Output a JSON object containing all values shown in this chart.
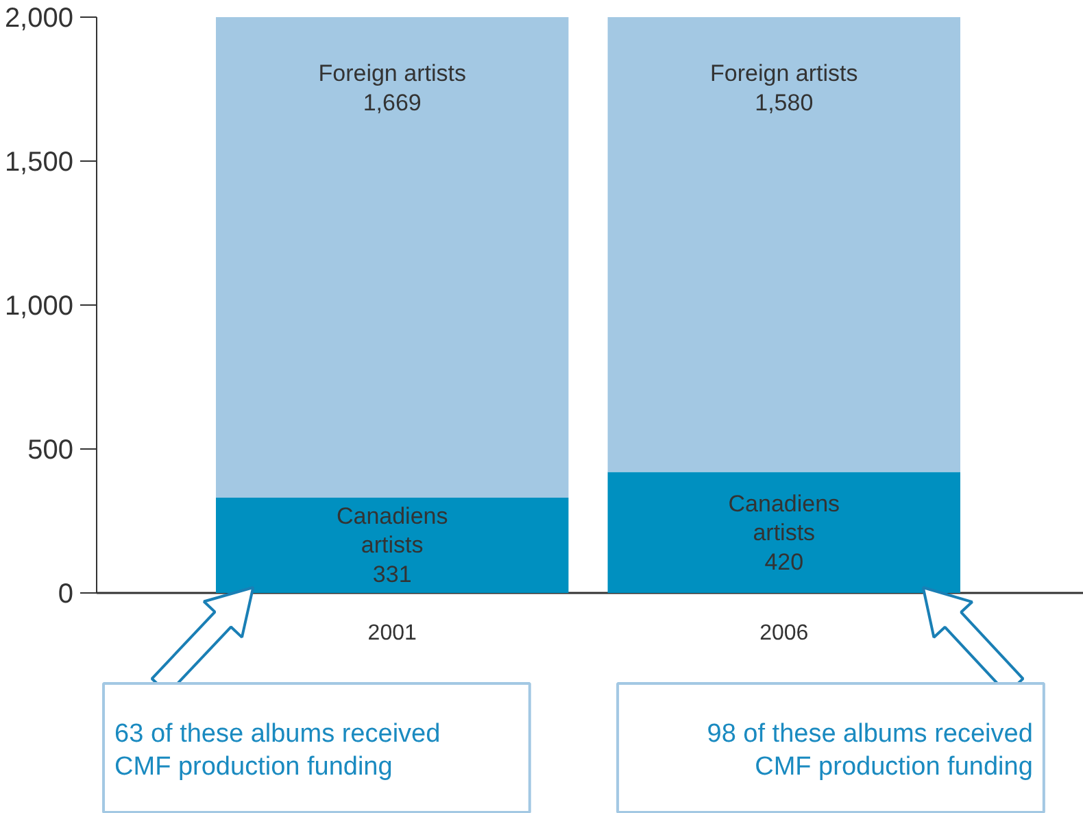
{
  "chart_data": {
    "type": "bar",
    "stacked": true,
    "categories": [
      "2001",
      "2006"
    ],
    "series": [
      {
        "name": "Canadiens artists",
        "color": "#0090c0",
        "values": [
          331,
          420
        ],
        "value_labels": [
          "331",
          "420"
        ]
      },
      {
        "name": "Foreign artists",
        "color": "#a3c8e3",
        "values": [
          1669,
          1580
        ],
        "value_labels": [
          "1,669",
          "1,580"
        ]
      }
    ],
    "ylim": [
      0,
      2000
    ],
    "yticks": [
      0,
      {
        "value": 500,
        "label": "500"
      },
      {
        "value": 1000,
        "label": "1,000"
      },
      {
        "value": 1500,
        "label": "1,500"
      },
      {
        "value": 2000,
        "label": "2,000"
      }
    ],
    "grid": false,
    "annotations": [
      "63 of these albums received\nCMF production funding",
      "98 of these albums received\nCMF production funding"
    ]
  }
}
